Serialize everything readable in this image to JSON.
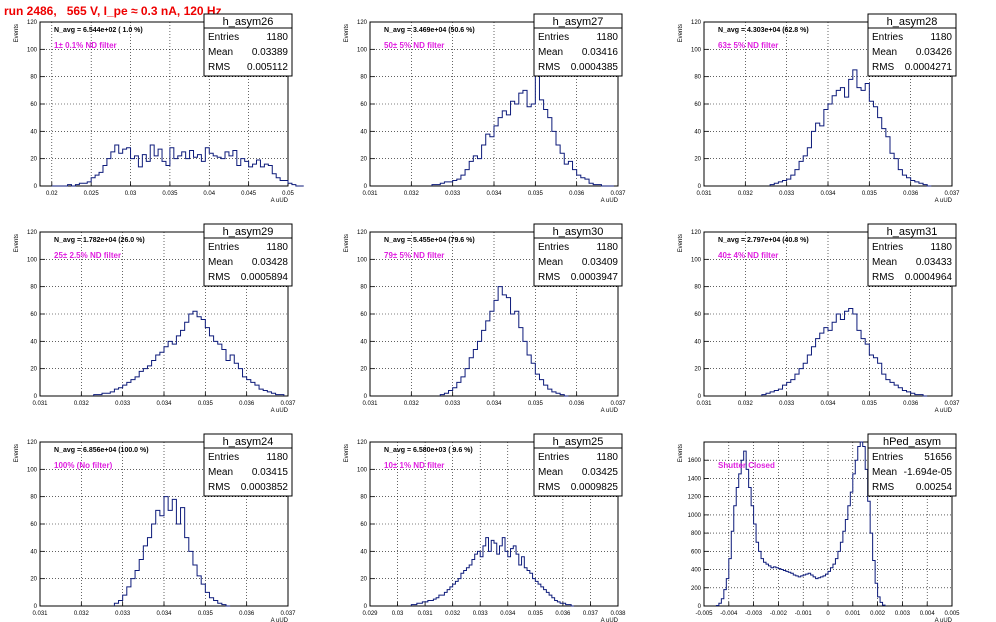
{
  "page_title": "run 2486,   565 V, I_pe ≈ 0.3 nA, 120 Hz",
  "chart_data": [
    {
      "type": "histogram",
      "hist_name": "h_asym26",
      "stats": {
        "entries_label": "Entries",
        "entries": "1180",
        "mean_label": "Mean",
        "mean": "0.03389",
        "rms_label": "RMS",
        "rms": "0.005112"
      },
      "nAvg": "N_avg = 6.544e+02 ( 1.0 %)",
      "filter": "1± 0.1% ND filter",
      "ylabel": "Events",
      "xlabel": "A uUD",
      "xlim": [
        0.0185,
        0.05
      ],
      "ylim": [
        0,
        120
      ],
      "xticks": [
        "0.02",
        "0.025",
        "0.03",
        "0.035",
        "0.04",
        "0.045",
        "0.05"
      ],
      "xtick_values": [
        0.02,
        0.025,
        0.03,
        0.035,
        0.04,
        0.045,
        0.05
      ],
      "yticks": [
        0,
        20,
        40,
        60,
        80,
        100,
        120
      ],
      "bin_width": 0.0005,
      "x_start": 0.02,
      "values": [
        0,
        0,
        0,
        0,
        1,
        0,
        1,
        2,
        2,
        3,
        6,
        8,
        10,
        15,
        20,
        25,
        30,
        24,
        27,
        28,
        20,
        22,
        14,
        23,
        18,
        30,
        22,
        27,
        18,
        15,
        28,
        20,
        22,
        25,
        20,
        26,
        21,
        23,
        18,
        28,
        24,
        22,
        21,
        20,
        25,
        22,
        26,
        15,
        20,
        18,
        14,
        16,
        19,
        14,
        16,
        15,
        9,
        6,
        4,
        4,
        2,
        1,
        0,
        0
      ]
    },
    {
      "type": "histogram",
      "hist_name": "h_asym27",
      "stats": {
        "entries_label": "Entries",
        "entries": "1180",
        "mean_label": "Mean",
        "mean": "0.03416",
        "rms_label": "RMS",
        "rms": "0.0004385"
      },
      "nAvg": "N_avg = 3.469e+04 (50.6 %)",
      "filter": "50± 5% ND filter",
      "ylabel": "Events",
      "xlabel": "A uUD",
      "xlim": [
        0.031,
        0.037
      ],
      "ylim": [
        0,
        120
      ],
      "xticks": [
        "0.031",
        "0.032",
        "0.033",
        "0.034",
        "0.035",
        "0.036",
        "0.037"
      ],
      "xtick_values": [
        0.031,
        0.032,
        0.033,
        0.034,
        0.035,
        0.036,
        0.037
      ],
      "yticks": [
        0,
        20,
        40,
        60,
        80,
        100,
        120
      ],
      "bin_width": 0.0001,
      "x_start": 0.0325,
      "values": [
        1,
        1,
        2,
        3,
        3,
        4,
        5,
        8,
        12,
        18,
        22,
        20,
        30,
        38,
        36,
        44,
        50,
        55,
        52,
        62,
        60,
        68,
        70,
        58,
        60,
        85,
        63,
        56,
        50,
        40,
        30,
        24,
        16,
        18,
        12,
        8,
        6,
        5,
        2,
        1,
        1,
        0,
        0,
        0
      ]
    },
    {
      "type": "histogram",
      "hist_name": "h_asym28",
      "stats": {
        "entries_label": "Entries",
        "entries": "1180",
        "mean_label": "Mean",
        "mean": "0.03426",
        "rms_label": "RMS",
        "rms": "0.0004271"
      },
      "nAvg": "N_avg = 4.303e+04 (62.8 %)",
      "filter": "63± 5% ND filter",
      "ylabel": "Events",
      "xlabel": "A uUD",
      "xlim": [
        0.031,
        0.037
      ],
      "ylim": [
        0,
        120
      ],
      "xticks": [
        "0.031",
        "0.032",
        "0.033",
        "0.034",
        "0.035",
        "0.036",
        "0.037"
      ],
      "xtick_values": [
        0.031,
        0.032,
        0.033,
        0.034,
        0.035,
        0.036,
        0.037
      ],
      "yticks": [
        0,
        20,
        40,
        60,
        80,
        100,
        120
      ],
      "bin_width": 0.0001,
      "x_start": 0.0326,
      "values": [
        1,
        2,
        3,
        4,
        5,
        8,
        12,
        18,
        22,
        28,
        40,
        46,
        44,
        56,
        60,
        66,
        70,
        72,
        65,
        78,
        85,
        72,
        70,
        75,
        62,
        58,
        50,
        42,
        36,
        24,
        20,
        12,
        8,
        6,
        4,
        3,
        2,
        1,
        0
      ]
    },
    {
      "type": "histogram",
      "hist_name": "h_asym29",
      "stats": {
        "entries_label": "Entries",
        "entries": "1180",
        "mean_label": "Mean",
        "mean": "0.03428",
        "rms_label": "RMS",
        "rms": "0.0005894"
      },
      "nAvg": "N_avg = 1.782e+04 (26.0 %)",
      "filter": "25± 2.5% ND filter",
      "ylabel": "Events",
      "xlabel": "A uUD",
      "xlim": [
        0.031,
        0.037
      ],
      "ylim": [
        0,
        120
      ],
      "xticks": [
        "0.031",
        "0.032",
        "0.033",
        "0.034",
        "0.035",
        "0.036",
        "0.037"
      ],
      "xtick_values": [
        0.031,
        0.032,
        0.033,
        0.034,
        0.035,
        0.036,
        0.037
      ],
      "yticks": [
        0,
        20,
        40,
        60,
        80,
        100,
        120
      ],
      "bin_width": 0.0001,
      "x_start": 0.0323,
      "values": [
        1,
        1,
        2,
        2,
        3,
        5,
        6,
        8,
        10,
        12,
        14,
        18,
        20,
        22,
        26,
        30,
        32,
        36,
        40,
        38,
        44,
        48,
        54,
        60,
        62,
        58,
        56,
        50,
        44,
        40,
        38,
        34,
        26,
        30,
        24,
        20,
        14,
        12,
        10,
        8,
        5,
        4,
        3,
        2,
        1,
        1
      ]
    },
    {
      "type": "histogram",
      "hist_name": "h_asym30",
      "stats": {
        "entries_label": "Entries",
        "entries": "1180",
        "mean_label": "Mean",
        "mean": "0.03409",
        "rms_label": "RMS",
        "rms": "0.0003947"
      },
      "nAvg": "N_avg = 5.455e+04 (79.6 %)",
      "filter": "79± 5% ND filter",
      "ylabel": "Events",
      "xlabel": "A uUD",
      "xlim": [
        0.031,
        0.037
      ],
      "ylim": [
        0,
        120
      ],
      "xticks": [
        "0.031",
        "0.032",
        "0.033",
        "0.034",
        "0.035",
        "0.036",
        "0.037"
      ],
      "xtick_values": [
        0.031,
        0.032,
        0.033,
        0.034,
        0.035,
        0.036,
        0.037
      ],
      "yticks": [
        0,
        20,
        40,
        60,
        80,
        100,
        120
      ],
      "bin_width": 0.0001,
      "x_start": 0.0327,
      "values": [
        1,
        2,
        4,
        6,
        10,
        14,
        20,
        28,
        34,
        40,
        48,
        55,
        62,
        70,
        80,
        74,
        72,
        60,
        62,
        50,
        40,
        30,
        24,
        16,
        12,
        8,
        5,
        3,
        2,
        1,
        0
      ]
    },
    {
      "type": "histogram",
      "hist_name": "h_asym31",
      "stats": {
        "entries_label": "Entries",
        "entries": "1180",
        "mean_label": "Mean",
        "mean": "0.03433",
        "rms_label": "RMS",
        "rms": "0.0004964"
      },
      "nAvg": "N_avg = 2.797e+04 (40.8 %)",
      "filter": "40± 4% ND filter",
      "ylabel": "Events",
      "xlabel": "A uUD",
      "xlim": [
        0.031,
        0.037
      ],
      "ylim": [
        0,
        120
      ],
      "xticks": [
        "0.031",
        "0.032",
        "0.033",
        "0.034",
        "0.035",
        "0.036",
        "0.037"
      ],
      "xtick_values": [
        0.031,
        0.032,
        0.033,
        0.034,
        0.035,
        0.036,
        0.037
      ],
      "yticks": [
        0,
        20,
        40,
        60,
        80,
        100,
        120
      ],
      "bin_width": 0.0001,
      "x_start": 0.0324,
      "values": [
        1,
        2,
        3,
        4,
        5,
        8,
        10,
        12,
        16,
        20,
        24,
        30,
        36,
        42,
        46,
        50,
        48,
        54,
        60,
        56,
        62,
        64,
        60,
        48,
        42,
        38,
        30,
        28,
        24,
        16,
        12,
        10,
        8,
        6,
        4,
        3,
        2,
        1,
        1,
        0
      ]
    },
    {
      "type": "histogram",
      "hist_name": "h_asym24",
      "stats": {
        "entries_label": "Entries",
        "entries": "1180",
        "mean_label": "Mean",
        "mean": "0.03415",
        "rms_label": "RMS",
        "rms": "0.0003852"
      },
      "nAvg": "N_avg = 6.856e+04 (100.0 %)",
      "filter": "100% (No filter)",
      "ylabel": "Events",
      "xlabel": "A uUD",
      "xlim": [
        0.031,
        0.037
      ],
      "ylim": [
        0,
        120
      ],
      "xticks": [
        "0.031",
        "0.032",
        "0.033",
        "0.034",
        "0.035",
        "0.036",
        "0.037"
      ],
      "xtick_values": [
        0.031,
        0.032,
        0.033,
        0.034,
        0.035,
        0.036,
        0.037
      ],
      "yticks": [
        0,
        20,
        40,
        60,
        80,
        100,
        120
      ],
      "bin_width": 0.0001,
      "x_start": 0.0328,
      "values": [
        2,
        4,
        8,
        14,
        20,
        26,
        34,
        44,
        50,
        60,
        70,
        66,
        80,
        70,
        78,
        60,
        72,
        50,
        40,
        30,
        22,
        16,
        10,
        6,
        4,
        2,
        1,
        0
      ]
    },
    {
      "type": "histogram",
      "hist_name": "h_asym25",
      "stats": {
        "entries_label": "Entries",
        "entries": "1180",
        "mean_label": "Mean",
        "mean": "0.03425",
        "rms_label": "RMS",
        "rms": "0.0009825"
      },
      "nAvg": "N_avg = 6.580e+03 ( 9.6 %)",
      "filter": "10± 1% ND filter",
      "ylabel": "Events",
      "xlabel": "A uUD",
      "xlim": [
        0.029,
        0.038
      ],
      "ylim": [
        0,
        120
      ],
      "xticks": [
        "0.029",
        "0.03",
        "0.031",
        "0.032",
        "0.033",
        "0.034",
        "0.035",
        "0.036",
        "0.037",
        "0.038"
      ],
      "xtick_values": [
        0.029,
        0.03,
        0.031,
        0.032,
        0.033,
        0.034,
        0.035,
        0.036,
        0.037,
        0.038
      ],
      "yticks": [
        0,
        20,
        40,
        60,
        80,
        100,
        120
      ],
      "bin_width": 0.0001,
      "x_start": 0.0305,
      "values": [
        1,
        1,
        2,
        2,
        3,
        3,
        4,
        4,
        5,
        6,
        8,
        8,
        10,
        12,
        14,
        16,
        18,
        20,
        24,
        26,
        28,
        30,
        34,
        38,
        40,
        36,
        44,
        50,
        40,
        48,
        46,
        38,
        44,
        50,
        40,
        36,
        42,
        44,
        38,
        30,
        36,
        28,
        26,
        24,
        20,
        18,
        16,
        14,
        12,
        10,
        8,
        6,
        4,
        3,
        2,
        2,
        1,
        1,
        0
      ]
    },
    {
      "type": "histogram",
      "hist_name": "hPed_asym",
      "stats": {
        "entries_label": "Entries",
        "entries": "51656",
        "mean_label": "Mean",
        "mean": "-1.694e-05",
        "rms_label": "RMS",
        "rms": "0.00254"
      },
      "filter": "Shutter Closed",
      "ylabel": "Events",
      "xlabel": "A uUD",
      "xlim": [
        -0.005,
        0.005
      ],
      "ylim": [
        0,
        1800
      ],
      "xticks": [
        "-0.005",
        "-0.004",
        "-0.003",
        "-0.002",
        "-0.001",
        "0",
        "0.001",
        "0.002",
        "0.003",
        "0.004",
        "0.005"
      ],
      "xtick_values": [
        -0.005,
        -0.004,
        -0.003,
        -0.002,
        -0.001,
        0,
        0.001,
        0.002,
        0.003,
        0.004,
        0.005
      ],
      "yticks": [
        0,
        200,
        400,
        600,
        800,
        1000,
        1200,
        1400,
        1600
      ],
      "bin_width": 0.0001,
      "x_start": -0.0045,
      "values": [
        5,
        30,
        80,
        180,
        300,
        520,
        820,
        1100,
        1300,
        1450,
        1600,
        1700,
        1500,
        1300,
        1100,
        900,
        700,
        600,
        520,
        480,
        460,
        440,
        420,
        430,
        420,
        410,
        400,
        390,
        380,
        370,
        360,
        340,
        330,
        320,
        330,
        340,
        350,
        360,
        340,
        320,
        300,
        310,
        320,
        330,
        350,
        380,
        420,
        460,
        520,
        600,
        700,
        820,
        950,
        1100,
        1250,
        1450,
        1600,
        1750,
        1900,
        1750,
        1500,
        1150,
        800,
        500,
        250,
        100,
        40,
        10
      ]
    }
  ]
}
